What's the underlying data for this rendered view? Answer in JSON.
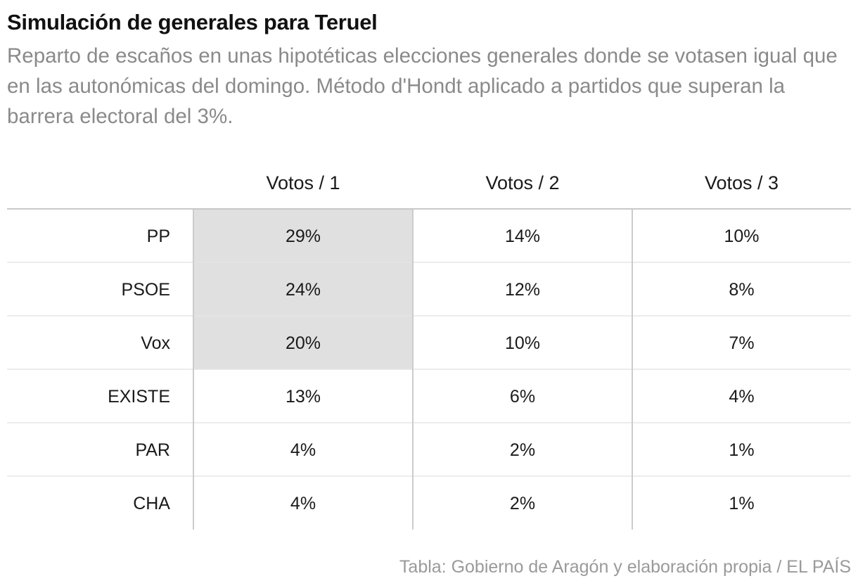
{
  "chart_data": {
    "type": "table",
    "title": "Simulación de generales para Teruel",
    "subtitle": "Reparto de escaños en unas hipotéticas elecciones generales donde se votasen igual que en las autonómicas del domingo. Método d'Hondt aplicado a partidos que superan la barrera electoral del 3%.",
    "columns": [
      "Votos / 1",
      "Votos / 2",
      "Votos / 3"
    ],
    "rows": [
      {
        "party": "PP",
        "values": [
          "29%",
          "14%",
          "10%"
        ],
        "highlighted": [
          true,
          false,
          false
        ]
      },
      {
        "party": "PSOE",
        "values": [
          "24%",
          "12%",
          "8%"
        ],
        "highlighted": [
          true,
          false,
          false
        ]
      },
      {
        "party": "Vox",
        "values": [
          "20%",
          "10%",
          "7%"
        ],
        "highlighted": [
          true,
          false,
          false
        ]
      },
      {
        "party": "EXISTE",
        "values": [
          "13%",
          "6%",
          "4%"
        ],
        "highlighted": [
          false,
          false,
          false
        ]
      },
      {
        "party": "PAR",
        "values": [
          "4%",
          "2%",
          "1%"
        ],
        "highlighted": [
          false,
          false,
          false
        ]
      },
      {
        "party": "CHA",
        "values": [
          "4%",
          "2%",
          "1%"
        ],
        "highlighted": [
          false,
          false,
          false
        ]
      }
    ],
    "source": "Tabla: Gobierno de Aragón y elaboración propia / EL PAÍS",
    "colors": {
      "highlight": "#e0e0e0",
      "row_separator": "#e6e6e6",
      "column_separator": "#cccccc",
      "header_rule": "#c8c8c8"
    }
  }
}
